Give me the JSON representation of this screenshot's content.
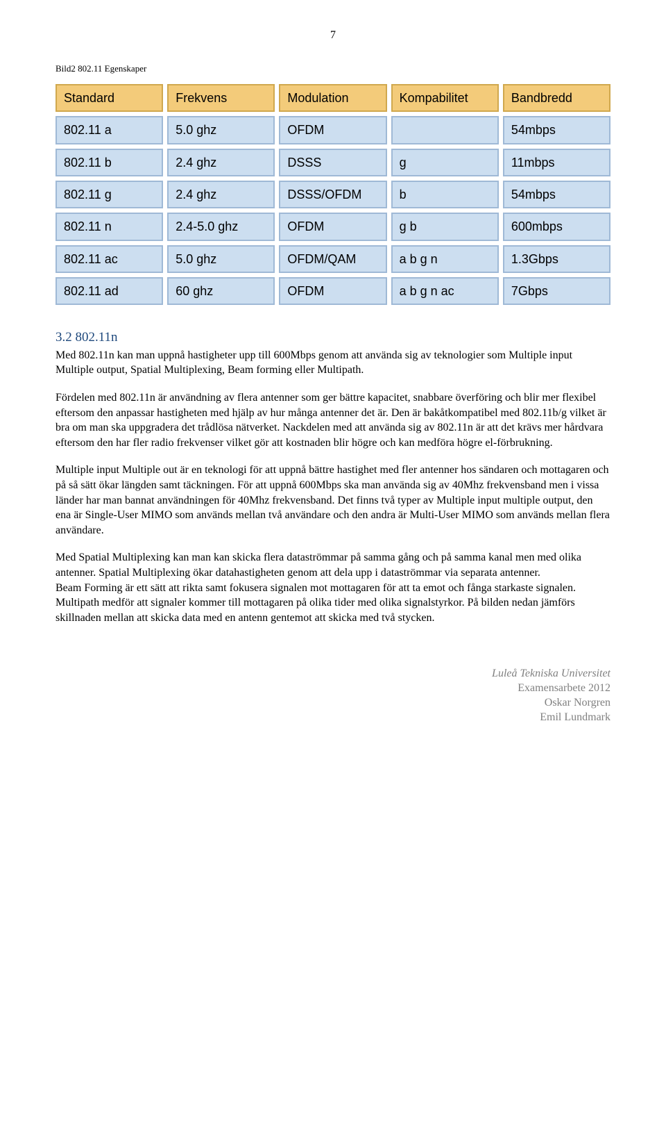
{
  "page_number": "7",
  "figure_caption": "Bild2 802.11 Egenskaper",
  "table": {
    "header_bg": "#f3cb7a",
    "header_border": "#d0a84e",
    "cell_bg": "#ccdef0",
    "cell_border": "#9fb9d6",
    "columns": [
      "Standard",
      "Frekvens",
      "Modulation",
      "Kompabilitet",
      "Bandbredd"
    ],
    "rows": [
      [
        "802.11 a",
        "5.0 ghz",
        "OFDM",
        "",
        "54mbps"
      ],
      [
        "802.11 b",
        "2.4 ghz",
        "DSSS",
        "g",
        "11mbps"
      ],
      [
        "802.11 g",
        "2.4 ghz",
        "DSSS/OFDM",
        "b",
        "54mbps"
      ],
      [
        "802.11 n",
        "2.4-5.0 ghz",
        "OFDM",
        "g b",
        "600mbps"
      ],
      [
        "802.11 ac",
        "5.0 ghz",
        "OFDM/QAM",
        "a b g n",
        "1.3Gbps"
      ],
      [
        "802.11 ad",
        "60 ghz",
        "OFDM",
        "a b g n ac",
        "7Gbps"
      ]
    ]
  },
  "section": {
    "number": "3.2",
    "title": "802.11n"
  },
  "paragraphs": {
    "p1": "Med 802.11n kan man uppnå hastigheter upp till 600Mbps genom att använda sig av teknologier som Multiple input Multiple output, Spatial Multiplexing, Beam forming eller Multipath.",
    "p2": "Fördelen med 802.11n är användning av flera antenner som ger bättre kapacitet, snabbare överföring och blir mer flexibel eftersom den anpassar hastigheten med hjälp av hur många antenner det är. Den är bakåtkompatibel med 802.11b/g vilket är bra om man ska uppgradera det trådlösa nätverket. Nackdelen med att använda sig av 802.11n är att det krävs mer hårdvara eftersom den har fler radio frekvenser vilket gör att kostnaden blir högre och kan medföra högre el-förbrukning.",
    "p3": "Multiple input Multiple out är en teknologi för att uppnå bättre hastighet med fler antenner hos sändaren och mottagaren och på så sätt ökar längden samt täckningen. För att uppnå 600Mbps ska man använda sig av 40Mhz frekvensband men i vissa länder har man bannat användningen för 40Mhz frekvensband. Det finns två typer av Multiple input multiple output, den ena är Single-User MIMO som används mellan två användare och den andra är Multi-User MIMO som används mellan flera användare.",
    "p4": "Med Spatial Multiplexing kan man kan skicka flera dataströmmar på samma gång och på samma kanal men med olika antenner. Spatial Multiplexing ökar datahastigheten genom att dela upp i dataströmmar via separata antenner.\nBeam Forming är ett sätt att rikta samt fokusera signalen mot mottagaren för att ta emot och fånga starkaste signalen. Multipath medför att signaler kommer till mottagaren på olika tider med olika signalstyrkor. På bilden nedan jämförs skillnaden mellan att skicka data med en antenn gentemot att skicka med två stycken."
  },
  "footer": {
    "line1": "Luleå Tekniska Universitet",
    "line2": "Examensarbete 2012",
    "line3": "Oskar Norgren",
    "line4": "Emil Lundmark"
  }
}
